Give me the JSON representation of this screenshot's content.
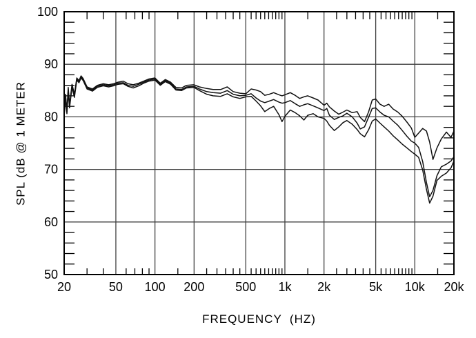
{
  "chart_data": {
    "type": "line",
    "title": "",
    "xlabel": "FREQUENCY  (HZ)",
    "ylabel": "SPL (dB @ 1 METER",
    "x_scale": "log",
    "xlim": [
      20,
      20000
    ],
    "ylim": [
      50,
      100
    ],
    "grid": "on",
    "legend": "none",
    "x_tick_values": [
      20,
      50,
      100,
      200,
      500,
      1000,
      2000,
      5000,
      10000,
      20000
    ],
    "x_tick_labels": [
      "20",
      "50",
      "100",
      "200",
      "500",
      "1k",
      "2k",
      "5k",
      "10k",
      "20k"
    ],
    "y_tick_values": [
      100,
      90,
      80,
      70,
      60,
      50
    ],
    "y_tick_labels": [
      "100",
      "90",
      "80",
      "70",
      "60",
      "50"
    ],
    "x_gridline_values": [
      50,
      100,
      200,
      500,
      1000,
      2000,
      5000,
      10000
    ],
    "y_gridline_values": [
      90,
      80,
      70,
      60
    ],
    "x_minor_ticks": [
      30,
      40,
      60,
      70,
      80,
      90,
      150,
      250,
      300,
      350,
      400,
      450,
      550,
      600,
      650,
      700,
      750,
      800,
      850,
      900,
      950,
      1500,
      2500,
      3000,
      3500,
      4000,
      4500,
      5500,
      6000,
      6500,
      7000,
      7500,
      8000,
      8500,
      9000,
      9500,
      15000
    ],
    "y_minor_tick_step": 2,
    "colors": {
      "curve": "#111111",
      "grid": "#3f3f3f",
      "frame": "#000000",
      "background": "#ffffff"
    },
    "x": [
      20,
      20.5,
      21,
      21.5,
      22,
      23,
      24,
      25,
      26,
      27,
      28,
      30,
      33,
      36,
      40,
      44,
      48,
      52,
      57,
      62,
      68,
      75,
      82,
      90,
      100,
      110,
      120,
      132,
      145,
      160,
      175,
      200,
      220,
      250,
      280,
      320,
      360,
      400,
      450,
      500,
      550,
      600,
      650,
      700,
      760,
      820,
      900,
      950,
      1000,
      1100,
      1200,
      1300,
      1400,
      1500,
      1650,
      1800,
      2000,
      2100,
      2200,
      2400,
      2600,
      2800,
      3000,
      3300,
      3600,
      3800,
      4100,
      4400,
      4700,
      5000,
      5400,
      5800,
      6300,
      6800,
      7400,
      8000,
      8700,
      9400,
      10000,
      10700,
      11500,
      12300,
      13000,
      13800,
      14800,
      16000,
      17500,
      19000,
      20000
    ],
    "series": [
      {
        "name": "upper-trace",
        "values": [
          80.8,
          84.3,
          81.2,
          85.6,
          82.3,
          86.2,
          84.3,
          87.4,
          86.9,
          87.8,
          87.3,
          85.7,
          85.3,
          86.0,
          86.3,
          86.1,
          86.3,
          86.6,
          86.8,
          86.3,
          86.1,
          86.4,
          86.8,
          87.2,
          87.4,
          86.4,
          87.1,
          86.6,
          85.6,
          85.5,
          86.0,
          86.1,
          85.7,
          85.4,
          85.2,
          85.2,
          85.7,
          84.8,
          84.5,
          84.4,
          85.3,
          85.1,
          84.8,
          84.1,
          84.3,
          84.6,
          84.2,
          84.0,
          84.2,
          84.6,
          84.1,
          83.5,
          83.8,
          84.0,
          83.6,
          83.2,
          82.2,
          82.6,
          81.9,
          81.1,
          80.5,
          80.9,
          81.3,
          80.8,
          81.0,
          79.9,
          79.1,
          80.9,
          83.2,
          83.4,
          82.4,
          82.0,
          82.4,
          81.5,
          80.9,
          80.1,
          79.0,
          77.9,
          76.1,
          76.9,
          77.8,
          77.3,
          75.2,
          71.9,
          74.1,
          75.8,
          77.1,
          76.1,
          77.3
        ]
      },
      {
        "name": "middle-trace",
        "values": [
          80.4,
          83.9,
          80.9,
          85.2,
          82.0,
          85.9,
          84.0,
          87.2,
          86.7,
          87.6,
          87.1,
          85.5,
          85.1,
          85.8,
          86.1,
          85.9,
          86.1,
          86.4,
          86.5,
          86.0,
          85.8,
          86.2,
          86.6,
          87.0,
          87.2,
          86.2,
          86.9,
          86.4,
          85.3,
          85.2,
          85.7,
          85.8,
          85.3,
          84.8,
          84.6,
          84.5,
          85.0,
          84.3,
          84.0,
          84.1,
          84.4,
          83.6,
          83.0,
          82.7,
          83.0,
          83.3,
          82.8,
          82.6,
          82.7,
          83.1,
          82.5,
          82.0,
          82.3,
          82.5,
          82.1,
          81.7,
          81.2,
          81.6,
          80.3,
          79.5,
          79.9,
          80.2,
          80.7,
          80.0,
          78.8,
          77.7,
          78.1,
          79.9,
          81.6,
          81.7,
          80.9,
          80.3,
          80.0,
          79.2,
          78.4,
          77.4,
          76.3,
          75.4,
          75.0,
          74.2,
          71.5,
          67.5,
          64.8,
          66.0,
          68.8,
          70.5,
          71.0,
          71.6,
          72.4
        ]
      },
      {
        "name": "lower-trace",
        "values": [
          80.1,
          83.5,
          80.6,
          84.8,
          81.7,
          85.6,
          83.7,
          87.0,
          86.5,
          87.4,
          86.9,
          85.3,
          84.9,
          85.6,
          85.9,
          85.7,
          85.9,
          86.2,
          86.3,
          85.8,
          85.5,
          85.9,
          86.4,
          86.8,
          87.0,
          86.0,
          86.7,
          86.2,
          85.1,
          85.0,
          85.5,
          85.6,
          85.0,
          84.3,
          84.0,
          83.9,
          84.4,
          83.8,
          83.5,
          83.8,
          83.9,
          83.0,
          82.1,
          81.0,
          81.6,
          82.0,
          80.4,
          79.1,
          80.1,
          81.3,
          80.8,
          80.2,
          79.4,
          80.3,
          80.6,
          80.0,
          79.7,
          79.2,
          78.4,
          77.4,
          78.1,
          78.9,
          79.3,
          78.6,
          77.6,
          76.8,
          76.2,
          77.5,
          79.2,
          79.6,
          78.8,
          78.1,
          77.3,
          76.4,
          75.6,
          74.8,
          74.1,
          73.4,
          72.9,
          72.3,
          69.9,
          66.2,
          63.6,
          64.9,
          67.9,
          68.7,
          69.3,
          70.3,
          71.6
        ]
      }
    ]
  }
}
